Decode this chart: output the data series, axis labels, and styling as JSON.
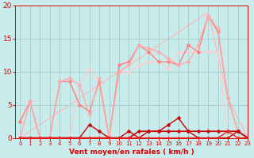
{
  "background_color": "#c8ecec",
  "grid_color": "#a8d0d0",
  "xlabel": "Vent moyen/en rafales ( km/h )",
  "xlabel_color": "#dd0000",
  "tick_color": "#dd0000",
  "xlim": [
    -0.5,
    23
  ],
  "ylim": [
    0,
    20
  ],
  "xticks": [
    0,
    1,
    2,
    3,
    4,
    5,
    6,
    7,
    8,
    9,
    10,
    11,
    12,
    13,
    14,
    15,
    16,
    17,
    18,
    19,
    20,
    21,
    22,
    23
  ],
  "yticks": [
    0,
    5,
    10,
    15,
    20
  ],
  "lines": [
    {
      "x": [
        0,
        19,
        21,
        23
      ],
      "y": [
        0,
        19,
        6,
        0
      ],
      "color": "#ffb8b8",
      "linewidth": 0.9,
      "marker": null,
      "markersize": 0,
      "zorder": 1
    },
    {
      "x": [
        0,
        1,
        2,
        3,
        4,
        5,
        6,
        7,
        8,
        9,
        10,
        11,
        12,
        13,
        14,
        15,
        16,
        17,
        18,
        19,
        20,
        21,
        22,
        23
      ],
      "y": [
        2.5,
        5.5,
        0,
        0,
        8.5,
        8.5,
        5,
        4,
        8.5,
        0,
        11,
        11.5,
        14,
        13,
        11.5,
        11.5,
        11,
        14,
        13,
        18.5,
        16,
        6,
        1,
        0
      ],
      "color": "#ff8080",
      "linewidth": 1.0,
      "marker": "D",
      "markersize": 2.5,
      "zorder": 3
    },
    {
      "x": [
        0,
        1,
        2,
        3,
        4,
        5,
        6,
        7,
        8,
        9,
        10,
        11,
        12,
        13,
        14,
        15,
        16,
        17,
        18,
        19,
        20,
        21,
        22,
        23
      ],
      "y": [
        0,
        5.5,
        0,
        0,
        8.5,
        9,
        8,
        3.5,
        9,
        0,
        10,
        11,
        14,
        13.5,
        13,
        12,
        11,
        11.5,
        14,
        18.5,
        16.5,
        6,
        1,
        0
      ],
      "color": "#ffaaaa",
      "linewidth": 1.0,
      "marker": "D",
      "markersize": 2.5,
      "zorder": 3
    },
    {
      "x": [
        0,
        1,
        2,
        3,
        4,
        5,
        6,
        7,
        8,
        9,
        10,
        11,
        12,
        13,
        14,
        15,
        16,
        17,
        18,
        19,
        20,
        21,
        22,
        23
      ],
      "y": [
        0,
        5.5,
        0,
        0,
        0,
        0,
        8,
        10.5,
        8.5,
        0,
        10,
        10,
        11,
        11.5,
        11.5,
        10.5,
        13,
        13,
        13,
        13,
        13,
        0,
        0,
        0
      ],
      "color": "#ffcccc",
      "linewidth": 0.9,
      "marker": "D",
      "markersize": 2.5,
      "zorder": 2
    },
    {
      "x": [
        0,
        1,
        2,
        3,
        4,
        5,
        6,
        7,
        8,
        9,
        10,
        11,
        12,
        13,
        14,
        15,
        16,
        17,
        18,
        19,
        20,
        21,
        22,
        23
      ],
      "y": [
        0,
        0,
        0,
        0,
        0,
        0,
        0,
        0,
        0,
        0,
        0,
        0,
        1,
        1,
        1,
        1,
        1,
        1,
        1,
        1,
        1,
        1,
        1,
        0
      ],
      "color": "#cc0000",
      "linewidth": 1.2,
      "marker": "D",
      "markersize": 2.5,
      "zorder": 4
    },
    {
      "x": [
        0,
        1,
        2,
        3,
        4,
        5,
        6,
        7,
        8,
        9,
        10,
        11,
        12,
        13,
        14,
        15,
        16,
        17,
        18,
        19,
        20,
        21,
        22,
        23
      ],
      "y": [
        0,
        0,
        0,
        0,
        0,
        0,
        0,
        2,
        1,
        0,
        0,
        1,
        0,
        1,
        1,
        2,
        3,
        1,
        0,
        0,
        0,
        0,
        1,
        0
      ],
      "color": "#cc0000",
      "linewidth": 1.0,
      "marker": "D",
      "markersize": 2.5,
      "zorder": 4
    },
    {
      "x": [
        0,
        1,
        2,
        3,
        4,
        5,
        6,
        7,
        8,
        9,
        10,
        11,
        12,
        13,
        14,
        15,
        16,
        17,
        18,
        19,
        20,
        21,
        22,
        23
      ],
      "y": [
        0,
        0,
        0,
        0,
        0,
        0,
        0,
        0,
        0,
        0,
        0,
        0,
        0,
        0,
        0,
        0,
        0,
        0,
        0,
        0,
        0,
        1,
        0,
        0
      ],
      "color": "#ee2222",
      "linewidth": 1.0,
      "marker": "D",
      "markersize": 2.5,
      "zorder": 4
    }
  ]
}
